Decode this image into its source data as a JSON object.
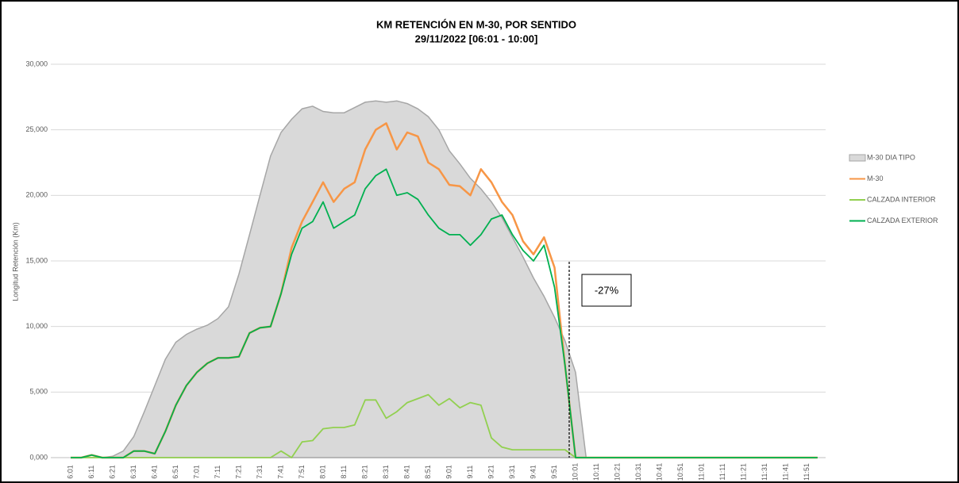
{
  "chart_data": {
    "type": "line",
    "title": "KM RETENCIÓN EN M-30, POR SENTIDO",
    "subtitle": "29/11/2022    [06:01 - 10:00]",
    "y_label": "Longitud Retención (Km)",
    "annotation": "-27%",
    "categories": [
      "6:01",
      null,
      "6:11",
      null,
      "6:21",
      null,
      "6:31",
      null,
      "6:41",
      null,
      "6:51",
      null,
      "7:01",
      null,
      "7:11",
      null,
      "7:21",
      null,
      "7:31",
      null,
      "7:41",
      null,
      "7:51",
      null,
      "8:01",
      null,
      "8:11",
      null,
      "8:21",
      null,
      "8:31",
      null,
      "8:41",
      null,
      "8:51",
      null,
      "9:01",
      null,
      "9:11",
      null,
      "9:21",
      null,
      "9:31",
      null,
      "9:41",
      null,
      "9:51",
      null,
      "10:01",
      null,
      "10:11",
      null,
      "10:21",
      null,
      "10:31",
      null,
      "10:41",
      null,
      "10:51",
      null,
      "11:01",
      null,
      "11:11",
      null,
      "11:21",
      null,
      "11:31",
      null,
      "11:41",
      null,
      "11:51",
      null
    ],
    "series": [
      {
        "name": "M-30 DIA TIPO",
        "color": "#d9d9d9",
        "area": true,
        "values": [
          0,
          0,
          0,
          0,
          0.1,
          0.5,
          1.6,
          3.5,
          5.5,
          7.5,
          8.8,
          9.4,
          9.8,
          10.1,
          10.6,
          11.5,
          14,
          17,
          20,
          23,
          24.8,
          25.8,
          26.6,
          26.8,
          26.4,
          26.3,
          26.3,
          26.7,
          27.1,
          27.2,
          27.1,
          27.2,
          27.0,
          26.6,
          26.0,
          25.0,
          23.4,
          22.4,
          21.3,
          20.5,
          19.5,
          18.3,
          16.8,
          15.3,
          13.7,
          12.3,
          10.7,
          8.9,
          6.5,
          0,
          0,
          0,
          0,
          0,
          0,
          0,
          0,
          0,
          0,
          0,
          0,
          0,
          0,
          0,
          0,
          0,
          0,
          0,
          0,
          0,
          0,
          0
        ]
      },
      {
        "name": "M-30",
        "color": "#f79646",
        "values": [
          0,
          0,
          0.2,
          0,
          0,
          0,
          0.5,
          0.5,
          0.3,
          2,
          4,
          5.5,
          6.5,
          7.2,
          7.6,
          7.6,
          7.7,
          9.5,
          9.9,
          10,
          12.5,
          16,
          18,
          19.5,
          21,
          19.5,
          20.5,
          21,
          23.5,
          25,
          25.5,
          23.5,
          24.8,
          24.5,
          22.5,
          22,
          20.8,
          20.7,
          20,
          22,
          21,
          19.5,
          18.5,
          16.5,
          15.5,
          16.8,
          14.5,
          7,
          0,
          0,
          0,
          0,
          0,
          0,
          0,
          0,
          0,
          0,
          0,
          0,
          0,
          0,
          0,
          0,
          0,
          0,
          0,
          0,
          0,
          0,
          0,
          0
        ]
      },
      {
        "name": "CALZADA INTERIOR",
        "color": "#92d050",
        "values": [
          0,
          0,
          0,
          0,
          0,
          0,
          0,
          0,
          0,
          0,
          0,
          0,
          0,
          0,
          0,
          0,
          0,
          0,
          0,
          0,
          0.5,
          0,
          1.2,
          1.3,
          2.2,
          2.3,
          2.3,
          2.5,
          4.4,
          4.4,
          3,
          3.5,
          4.2,
          4.5,
          4.8,
          4,
          4.5,
          3.8,
          4.2,
          4,
          1.5,
          0.8,
          0.6,
          0.6,
          0.6,
          0.6,
          0.6,
          0.6,
          0,
          0,
          0,
          0,
          0,
          0,
          0,
          0,
          0,
          0,
          0,
          0,
          0,
          0,
          0,
          0,
          0,
          0,
          0,
          0,
          0,
          0,
          0,
          0
        ]
      },
      {
        "name": "CALZADA EXTERIOR",
        "color": "#00b050",
        "values": [
          0,
          0,
          0.2,
          0,
          0,
          0,
          0.5,
          0.5,
          0.3,
          2,
          4,
          5.5,
          6.5,
          7.2,
          7.6,
          7.6,
          7.7,
          9.5,
          9.9,
          10,
          12.5,
          15.5,
          17.5,
          18,
          19.5,
          17.5,
          18,
          18.5,
          20.5,
          21.5,
          22,
          20,
          20.2,
          19.7,
          18.5,
          17.5,
          17,
          17,
          16.2,
          17,
          18.2,
          18.5,
          17,
          15.8,
          15,
          16.2,
          13,
          7,
          0,
          0,
          0,
          0,
          0,
          0,
          0,
          0,
          0,
          0,
          0,
          0,
          0,
          0,
          0,
          0,
          0,
          0,
          0,
          0,
          0,
          0,
          0,
          0
        ]
      }
    ],
    "ylim": [
      0,
      30
    ],
    "yticks": [
      {
        "value": 0,
        "label": "0,000"
      },
      {
        "value": 5,
        "label": "5,000"
      },
      {
        "value": 10,
        "label": "10,000"
      },
      {
        "value": 15,
        "label": "15,000"
      },
      {
        "value": 20,
        "label": "20,000"
      },
      {
        "value": 25,
        "label": "25,000"
      },
      {
        "value": 30,
        "label": "30,000"
      }
    ],
    "grid": true,
    "legend": "right"
  }
}
